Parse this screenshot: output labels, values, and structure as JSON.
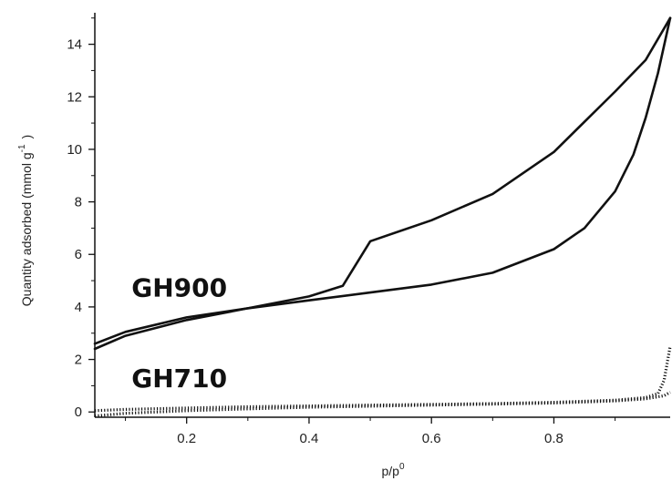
{
  "chart_data": {
    "type": "line",
    "xlabel": {
      "base": "p/p",
      "sup": "0"
    },
    "ylabel": {
      "main": "Quantity adsorbed (mmol g",
      "sup": "-1",
      "close": ")"
    },
    "xlim": [
      0.05,
      0.99
    ],
    "ylim": [
      -0.2,
      15.2
    ],
    "xticks": [
      0.2,
      0.4,
      0.6,
      0.8
    ],
    "xtick_labels": [
      "0.2",
      "0.4",
      "0.6",
      "0.8"
    ],
    "yticks": [
      0,
      2,
      4,
      6,
      8,
      10,
      12,
      14
    ],
    "ytick_labels": [
      "0",
      "2",
      "4",
      "6",
      "8",
      "10",
      "12",
      "14"
    ],
    "grid": false,
    "series": [
      {
        "name": "GH900",
        "branch": "adsorption",
        "style": "solid",
        "color": "#111111",
        "x": [
          0.05,
          0.1,
          0.2,
          0.3,
          0.4,
          0.5,
          0.6,
          0.7,
          0.8,
          0.85,
          0.9,
          0.93,
          0.95,
          0.97,
          0.99
        ],
        "y": [
          2.4,
          2.9,
          3.5,
          3.95,
          4.25,
          4.55,
          4.85,
          5.3,
          6.2,
          7.0,
          8.4,
          9.8,
          11.2,
          12.9,
          15.0
        ]
      },
      {
        "name": "GH900",
        "branch": "desorption",
        "style": "solid",
        "color": "#111111",
        "x": [
          0.05,
          0.1,
          0.2,
          0.3,
          0.4,
          0.455,
          0.5,
          0.6,
          0.7,
          0.8,
          0.9,
          0.95,
          0.99
        ],
        "y": [
          2.6,
          3.05,
          3.6,
          3.95,
          4.4,
          4.8,
          6.5,
          7.3,
          8.3,
          9.9,
          12.2,
          13.4,
          15.0
        ]
      },
      {
        "name": "GH710",
        "branch": "adsorption",
        "style": "dotted",
        "color": "#111111",
        "x": [
          0.05,
          0.1,
          0.2,
          0.3,
          0.4,
          0.5,
          0.6,
          0.7,
          0.8,
          0.9,
          0.95,
          0.98,
          0.99
        ],
        "y": [
          -0.15,
          -0.05,
          0.05,
          0.12,
          0.18,
          0.22,
          0.26,
          0.3,
          0.34,
          0.42,
          0.5,
          0.62,
          0.75
        ]
      },
      {
        "name": "GH710",
        "branch": "desorption",
        "style": "dotted",
        "color": "#111111",
        "x": [
          0.05,
          0.1,
          0.2,
          0.3,
          0.4,
          0.5,
          0.6,
          0.7,
          0.8,
          0.9,
          0.95,
          0.97,
          0.98,
          0.99
        ],
        "y": [
          0.05,
          0.1,
          0.15,
          0.2,
          0.23,
          0.26,
          0.29,
          0.32,
          0.37,
          0.45,
          0.55,
          0.7,
          1.2,
          2.5
        ]
      }
    ],
    "annotations": [
      {
        "text": "GH900",
        "x": 0.11,
        "y": 4.4
      },
      {
        "text": "GH710",
        "x": 0.11,
        "y": 0.95
      }
    ]
  }
}
